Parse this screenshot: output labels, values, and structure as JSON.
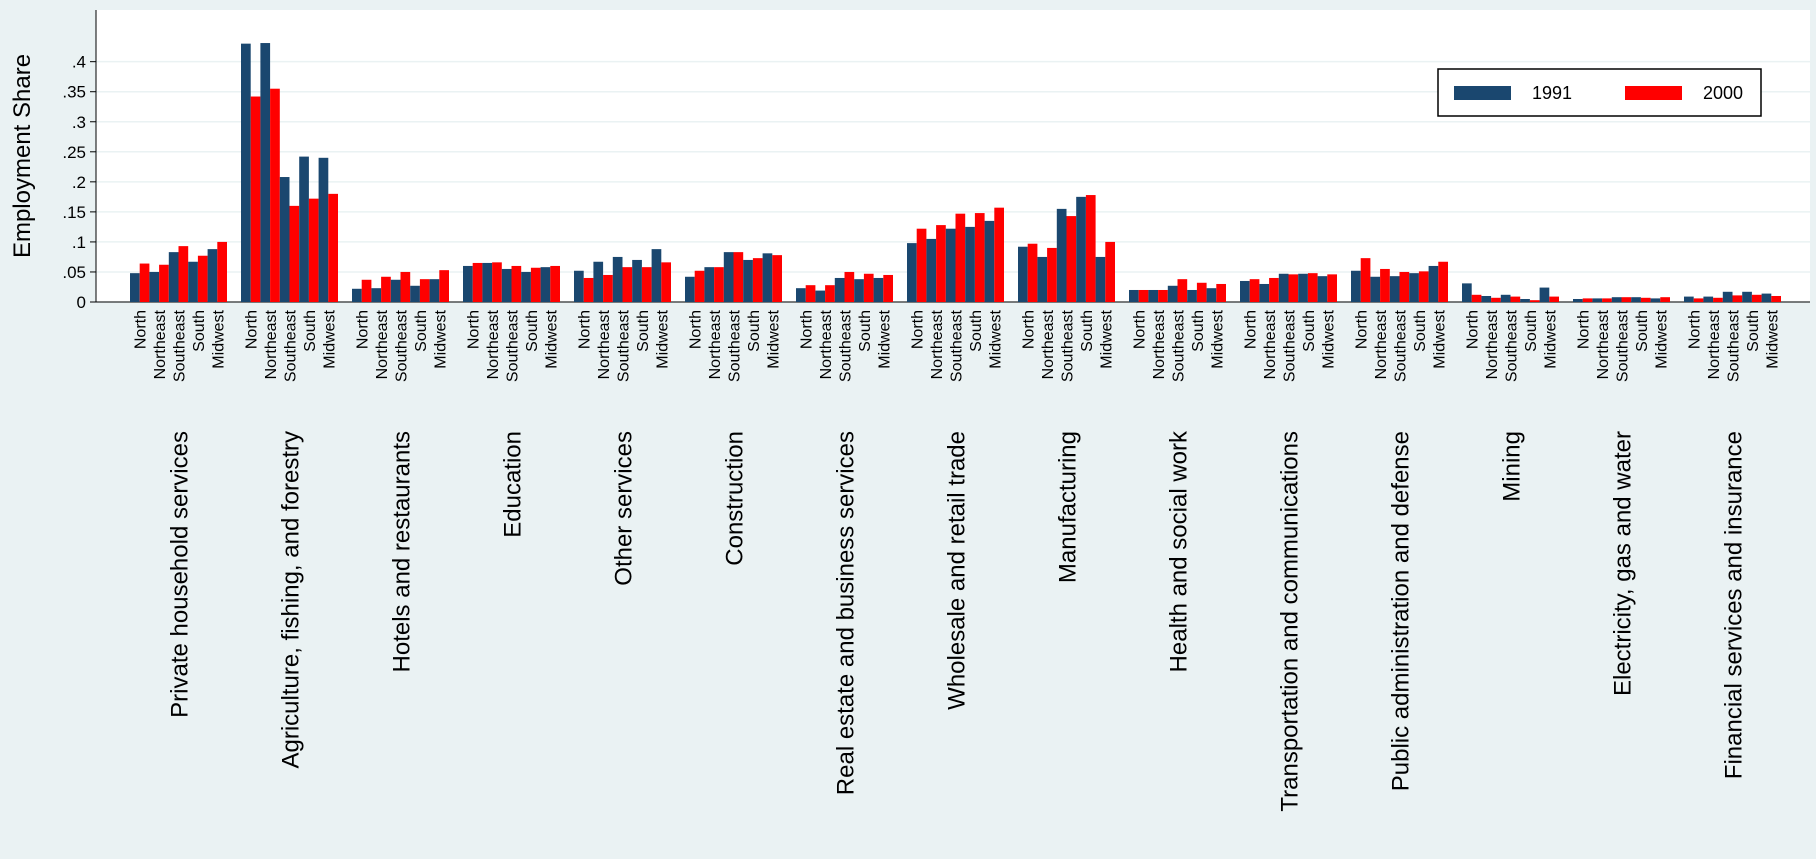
{
  "chart_data": {
    "type": "grouped-bar",
    "y_label": "Employment Share",
    "groups": [
      "Private household services",
      "Agriculture, fishing, and forestry",
      "Hotels and restaurants",
      "Education",
      "Other services",
      "Construction",
      "Real estate and business services",
      "Wholesale and retail trade",
      "Manufacturing",
      "Health and social work",
      "Transportation and communications",
      "Public administration and defense",
      "Mining",
      "Electricity, gas and water",
      "Financial services and insurance"
    ],
    "categories": [
      "North",
      "Northeast",
      "Southeast",
      "South",
      "Midwest",
      "North",
      "Northeast",
      "Southeast",
      "South",
      "Midwest",
      "North",
      "Northeast",
      "Southeast",
      "South",
      "Midwest",
      "North",
      "Northeast",
      "Southeast",
      "South",
      "Midwest",
      "North",
      "Northeast",
      "Southeast",
      "South",
      "Midwest",
      "North",
      "Northeast",
      "Southeast",
      "South",
      "Midwest",
      "North",
      "Northeast",
      "Southeast",
      "South",
      "Midwest",
      "North",
      "Northeast",
      "Southeast",
      "South",
      "Midwest",
      "North",
      "Northeast",
      "Southeast",
      "South",
      "Midwest",
      "North",
      "Northeast",
      "Southeast",
      "South",
      "Midwest",
      "North",
      "Northeast",
      "Southeast",
      "South",
      "Midwest",
      "North",
      "Northeast",
      "Southeast",
      "South",
      "Midwest",
      "North",
      "Northeast",
      "Southeast",
      "South",
      "Midwest",
      "North",
      "Northeast",
      "Southeast",
      "South",
      "Midwest",
      "North",
      "Northeast",
      "Southeast",
      "South",
      "Midwest"
    ],
    "series": [
      {
        "name": "1991",
        "color": "#1a476f",
        "values": [
          0.048,
          0.05,
          0.083,
          0.067,
          0.088,
          0.43,
          0.431,
          0.208,
          0.242,
          0.24,
          0.022,
          0.023,
          0.037,
          0.027,
          0.038,
          0.06,
          0.065,
          0.055,
          0.05,
          0.058,
          0.052,
          0.067,
          0.075,
          0.07,
          0.088,
          0.042,
          0.058,
          0.083,
          0.07,
          0.081,
          0.023,
          0.019,
          0.04,
          0.038,
          0.04,
          0.098,
          0.105,
          0.122,
          0.125,
          0.135,
          0.092,
          0.075,
          0.155,
          0.175,
          0.075,
          0.02,
          0.02,
          0.027,
          0.02,
          0.023,
          0.035,
          0.03,
          0.047,
          0.047,
          0.043,
          0.052,
          0.042,
          0.043,
          0.048,
          0.06,
          0.031,
          0.01,
          0.012,
          0.005,
          0.024,
          0.005,
          0.006,
          0.008,
          0.008,
          0.006,
          0.009,
          0.009,
          0.017,
          0.017,
          0.014
        ]
      },
      {
        "name": "2000",
        "color": "#ff0000",
        "values": [
          0.064,
          0.062,
          0.093,
          0.077,
          0.1,
          0.342,
          0.355,
          0.16,
          0.172,
          0.18,
          0.037,
          0.042,
          0.05,
          0.038,
          0.053,
          0.065,
          0.066,
          0.06,
          0.057,
          0.06,
          0.04,
          0.045,
          0.058,
          0.058,
          0.066,
          0.052,
          0.058,
          0.083,
          0.073,
          0.078,
          0.028,
          0.028,
          0.05,
          0.047,
          0.045,
          0.122,
          0.128,
          0.147,
          0.148,
          0.157,
          0.097,
          0.09,
          0.143,
          0.178,
          0.1,
          0.02,
          0.02,
          0.038,
          0.032,
          0.03,
          0.038,
          0.04,
          0.046,
          0.048,
          0.046,
          0.073,
          0.055,
          0.05,
          0.051,
          0.067,
          0.012,
          0.007,
          0.009,
          0.003,
          0.009,
          0.006,
          0.006,
          0.008,
          0.007,
          0.008,
          0.006,
          0.007,
          0.011,
          0.012,
          0.01
        ]
      }
    ],
    "ylim": [
      0,
      0.486
    ],
    "yticks": [
      0,
      {
        "value": 0.05,
        "label": ".05"
      },
      {
        "value": 0.1,
        "label": ".1"
      },
      {
        "value": 0.15,
        "label": ".15"
      },
      {
        "value": 0.2,
        "label": ".2"
      },
      {
        "value": 0.25,
        "label": ".25"
      },
      {
        "value": 0.3,
        "label": ".3"
      },
      {
        "value": 0.35,
        "label": ".35"
      },
      {
        "value": 0.4,
        "label": ".4"
      }
    ],
    "grid": true,
    "legend_position": "top-right"
  }
}
